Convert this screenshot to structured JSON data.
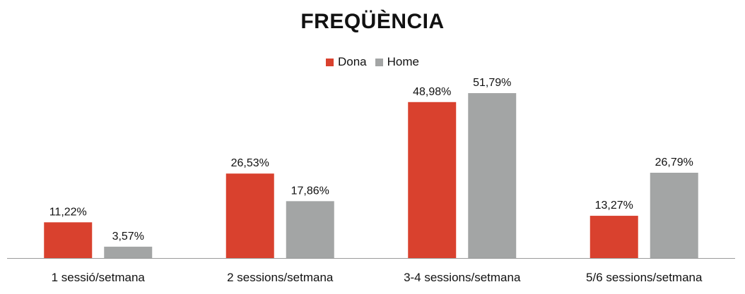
{
  "colors": {
    "Dona": "#d9412e",
    "Home": "#a3a5a5",
    "axis": "#9a9a9a"
  },
  "chart_data": {
    "type": "bar",
    "title": "FREQÜÈNCIA",
    "categories": [
      "1 sessió/setmana",
      "2 sessions/setmana",
      "3-4 sessions/setmana",
      "5/6 sessions/setmana"
    ],
    "series": [
      {
        "name": "Dona",
        "values": [
          11.22,
          26.53,
          48.98,
          13.27
        ],
        "labels": [
          "11,22%",
          "26,53%",
          "48,98%",
          "13,27%"
        ]
      },
      {
        "name": "Home",
        "values": [
          3.57,
          17.86,
          51.79,
          26.79
        ],
        "labels": [
          "3,57%",
          "17,86%",
          "51,79%",
          "26,79%"
        ]
      }
    ],
    "ylim": [
      0,
      60
    ],
    "grid": false,
    "legend": "top-center"
  }
}
